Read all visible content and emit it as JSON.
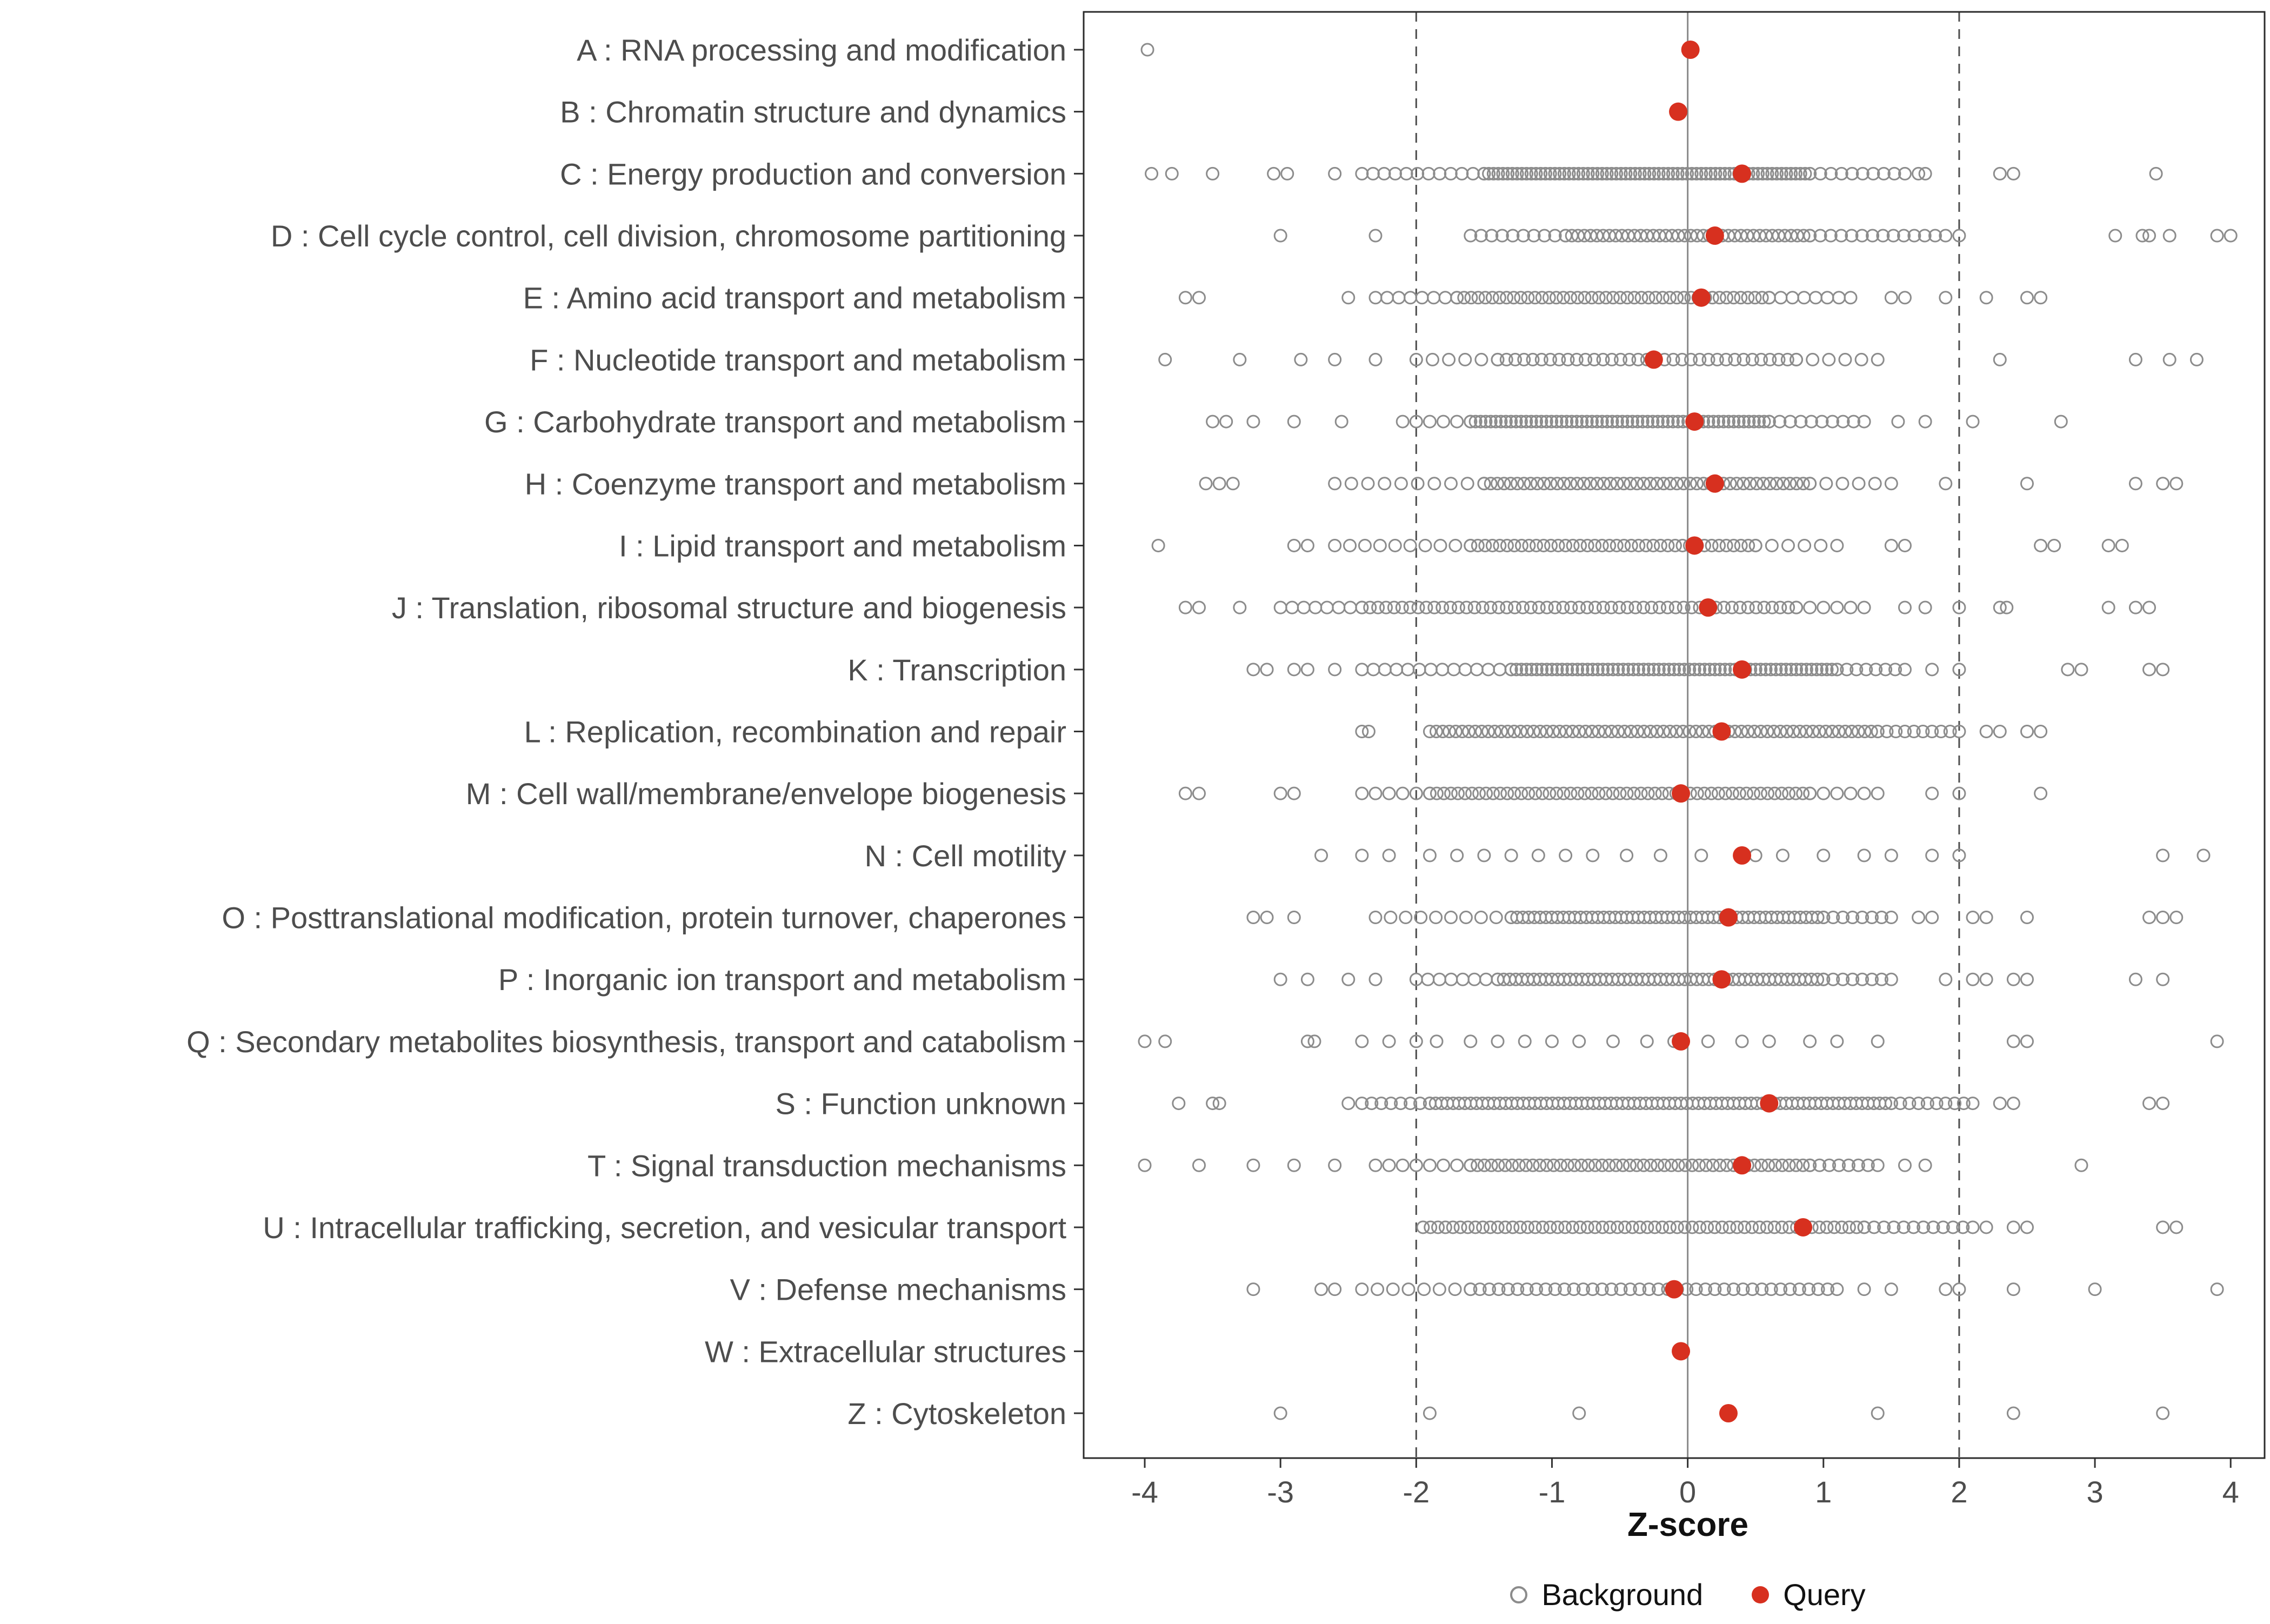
{
  "chart_data": {
    "type": "scatter",
    "title": "",
    "xlabel": "Z-score",
    "x_ticks": [
      -4,
      -3,
      -2,
      -1,
      0,
      1,
      2,
      3,
      4
    ],
    "x_range": [
      -4.45,
      4.25
    ],
    "reference_lines": {
      "solid": [
        0
      ],
      "dashed": [
        -2,
        2
      ]
    },
    "legend": [
      "Background",
      "Query"
    ],
    "colors": {
      "background_stroke": "#8c8c8c",
      "query_fill": "#d7301f",
      "axis_text": "#4d4d4d",
      "panel_border": "#2b2b2b",
      "zero_line": "#8a8a8a",
      "dashed_line": "#4d4d4d"
    },
    "categories": [
      {
        "code": "A",
        "label": "A : RNA processing and modification",
        "query": 0.02,
        "background": {
          "ranges": [],
          "points": [
            -3.98
          ]
        }
      },
      {
        "code": "B",
        "label": "B : Chromatin structure and dynamics",
        "query": -0.07,
        "background": {
          "ranges": [],
          "points": []
        }
      },
      {
        "code": "C",
        "label": "C : Energy production and conversion",
        "query": 0.4,
        "background": {
          "ranges": [
            [
              -1.5,
              0.9,
              70
            ],
            [
              -2.4,
              -1.5,
              12
            ],
            [
              0.9,
              1.6,
              10
            ]
          ],
          "points": [
            -3.95,
            -3.8,
            -3.5,
            -3.05,
            -2.95,
            -2.6,
            1.7,
            1.75,
            2.3,
            2.4,
            3.45
          ]
        }
      },
      {
        "code": "D",
        "label": "D : Cell cycle control, cell division, chromosome partitioning",
        "query": 0.2,
        "background": {
          "ranges": [
            [
              -0.9,
              0.9,
              40
            ],
            [
              -1.6,
              -0.9,
              10
            ],
            [
              0.9,
              1.9,
              14
            ]
          ],
          "points": [
            -3.0,
            -2.3,
            2.0,
            3.15,
            3.35,
            3.4,
            3.55,
            3.9,
            4.0
          ]
        }
      },
      {
        "code": "E",
        "label": "E : Amino acid transport and metabolism",
        "query": 0.1,
        "background": {
          "ranges": [
            [
              -1.7,
              0.6,
              45
            ],
            [
              -2.3,
              -1.7,
              8
            ],
            [
              0.6,
              1.2,
              8
            ]
          ],
          "points": [
            -3.7,
            -3.6,
            -2.5,
            1.5,
            1.6,
            1.9,
            2.2,
            2.5,
            2.6
          ]
        }
      },
      {
        "code": "F",
        "label": "F : Nucleotide transport and metabolism",
        "query": -0.25,
        "background": {
          "ranges": [
            [
              -1.4,
              0.8,
              35
            ],
            [
              -2.0,
              -1.4,
              6
            ],
            [
              0.8,
              1.4,
              6
            ]
          ],
          "points": [
            -3.85,
            -3.3,
            -2.85,
            -2.6,
            -2.3,
            2.3,
            3.3,
            3.55,
            3.75
          ]
        }
      },
      {
        "code": "G",
        "label": "G : Carbohydrate transport and metabolism",
        "query": 0.05,
        "background": {
          "ranges": [
            [
              -1.6,
              0.6,
              60
            ],
            [
              -2.1,
              -1.6,
              6
            ],
            [
              0.6,
              1.3,
              10
            ]
          ],
          "points": [
            -3.5,
            -3.4,
            -3.2,
            -2.9,
            -2.55,
            1.55,
            1.75,
            2.1,
            2.75
          ]
        }
      },
      {
        "code": "H",
        "label": "H : Coenzyme transport and metabolism",
        "query": 0.2,
        "background": {
          "ranges": [
            [
              -1.5,
              0.9,
              50
            ],
            [
              -2.6,
              -1.5,
              10
            ],
            [
              0.9,
              1.5,
              6
            ]
          ],
          "points": [
            -3.55,
            -3.45,
            -3.35,
            1.9,
            2.5,
            3.3,
            3.5,
            3.6
          ]
        }
      },
      {
        "code": "I",
        "label": "I : Lipid transport and metabolism",
        "query": 0.05,
        "background": {
          "ranges": [
            [
              -1.6,
              0.5,
              40
            ],
            [
              -2.6,
              -1.6,
              10
            ],
            [
              0.5,
              1.1,
              6
            ]
          ],
          "points": [
            -3.9,
            -2.9,
            -2.8,
            1.5,
            1.6,
            2.6,
            2.7,
            3.1,
            3.2
          ]
        }
      },
      {
        "code": "J",
        "label": "J : Translation, ribosomal structure and biogenesis",
        "query": 0.15,
        "background": {
          "ranges": [
            [
              -2.4,
              0.8,
              55
            ],
            [
              -3.0,
              -2.4,
              8
            ],
            [
              0.8,
              1.3,
              6
            ]
          ],
          "points": [
            -3.7,
            -3.6,
            -3.3,
            1.6,
            1.75,
            2.0,
            2.3,
            2.35,
            3.1,
            3.3,
            3.4
          ]
        }
      },
      {
        "code": "K",
        "label": "K : Transcription",
        "query": 0.4,
        "background": {
          "ranges": [
            [
              -1.3,
              1.1,
              65
            ],
            [
              -2.4,
              -1.3,
              14
            ],
            [
              1.1,
              1.6,
              8
            ]
          ],
          "points": [
            -3.2,
            -3.1,
            -2.9,
            -2.8,
            -2.6,
            1.8,
            2.0,
            2.8,
            2.9,
            3.4,
            3.5
          ]
        }
      },
      {
        "code": "L",
        "label": "L : Replication, recombination and repair",
        "query": 0.25,
        "background": {
          "ranges": [
            [
              -1.9,
              1.4,
              70
            ],
            [
              1.4,
              2.0,
              10
            ]
          ],
          "points": [
            -2.4,
            -2.35,
            2.2,
            2.3,
            2.5,
            2.6
          ]
        }
      },
      {
        "code": "M",
        "label": "M : Cell wall/membrane/envelope biogenesis",
        "query": -0.05,
        "background": {
          "ranges": [
            [
              -1.9,
              0.9,
              55
            ],
            [
              -2.4,
              -1.9,
              6
            ],
            [
              0.9,
              1.4,
              6
            ]
          ],
          "points": [
            -3.7,
            -3.6,
            -3.0,
            -2.9,
            1.8,
            2.0,
            2.6
          ]
        }
      },
      {
        "code": "N",
        "label": "N : Cell motility",
        "query": 0.4,
        "background": {
          "ranges": [],
          "points": [
            -2.7,
            -2.4,
            -2.2,
            -1.9,
            -1.7,
            -1.5,
            -1.3,
            -1.1,
            -0.9,
            -0.7,
            -0.45,
            -0.2,
            0.1,
            0.5,
            0.7,
            1.0,
            1.3,
            1.5,
            1.8,
            2.0,
            3.5,
            3.8
          ]
        }
      },
      {
        "code": "O",
        "label": "O : Posttranslational modification, protein turnover, chaperones",
        "query": 0.3,
        "background": {
          "ranges": [
            [
              -1.3,
              1.0,
              55
            ],
            [
              -2.3,
              -1.3,
              10
            ],
            [
              1.0,
              1.5,
              8
            ]
          ],
          "points": [
            -3.2,
            -3.1,
            -2.9,
            1.7,
            1.8,
            2.1,
            2.2,
            2.5,
            3.4,
            3.5,
            3.6
          ]
        }
      },
      {
        "code": "P",
        "label": "P : Inorganic ion transport and metabolism",
        "query": 0.25,
        "background": {
          "ranges": [
            [
              -1.4,
              1.0,
              55
            ],
            [
              -2.0,
              -1.4,
              8
            ],
            [
              1.0,
              1.5,
              8
            ]
          ],
          "points": [
            -3.0,
            -2.8,
            -2.5,
            -2.3,
            1.9,
            2.1,
            2.2,
            2.4,
            2.5,
            3.3,
            3.5
          ]
        }
      },
      {
        "code": "Q",
        "label": "Q : Secondary metabolites biosynthesis, transport and catabolism",
        "query": -0.05,
        "background": {
          "ranges": [],
          "points": [
            -4.0,
            -3.85,
            -2.8,
            -2.75,
            -2.4,
            -2.2,
            -2.0,
            -1.85,
            -1.6,
            -1.4,
            -1.2,
            -1.0,
            -0.8,
            -0.55,
            -0.3,
            -0.1,
            0.15,
            0.4,
            0.6,
            0.9,
            1.1,
            1.4,
            2.4,
            2.5,
            3.9
          ]
        }
      },
      {
        "code": "S",
        "label": "S : Function unknown",
        "query": 0.6,
        "background": {
          "ranges": [
            [
              -1.9,
              1.5,
              80
            ],
            [
              -2.4,
              -1.9,
              8
            ],
            [
              1.5,
              2.1,
              10
            ]
          ],
          "points": [
            -3.75,
            -3.5,
            -3.45,
            -2.5,
            2.3,
            2.4,
            3.4,
            3.5
          ]
        }
      },
      {
        "code": "T",
        "label": "T : Signal transduction mechanisms",
        "query": 0.4,
        "background": {
          "ranges": [
            [
              -1.6,
              0.9,
              50
            ],
            [
              -2.3,
              -1.6,
              8
            ],
            [
              0.9,
              1.4,
              8
            ]
          ],
          "points": [
            -4.0,
            -3.6,
            -3.2,
            -2.9,
            -2.6,
            1.6,
            1.75,
            2.9
          ]
        }
      },
      {
        "code": "U",
        "label": "U : Intracellular trafficking, secretion, and vesicular transport",
        "query": 0.85,
        "background": {
          "ranges": [
            [
              -1.95,
              1.3,
              60
            ],
            [
              1.3,
              2.1,
              12
            ]
          ],
          "points": [
            2.2,
            2.4,
            2.5,
            3.5,
            3.6
          ]
        }
      },
      {
        "code": "V",
        "label": "V : Defense mechanisms",
        "query": -0.1,
        "background": {
          "ranges": [
            [
              -1.6,
              1.1,
              40
            ],
            [
              -2.4,
              -1.6,
              8
            ]
          ],
          "points": [
            -3.2,
            -2.7,
            -2.6,
            1.3,
            1.5,
            1.9,
            2.0,
            2.4,
            3.0,
            3.9
          ]
        }
      },
      {
        "code": "W",
        "label": "W : Extracellular structures",
        "query": -0.05,
        "background": {
          "ranges": [],
          "points": []
        }
      },
      {
        "code": "Z",
        "label": "Z : Cytoskeleton",
        "query": 0.3,
        "background": {
          "ranges": [],
          "points": [
            -3.0,
            -1.9,
            -0.8,
            1.4,
            2.4,
            3.5
          ]
        }
      }
    ]
  }
}
